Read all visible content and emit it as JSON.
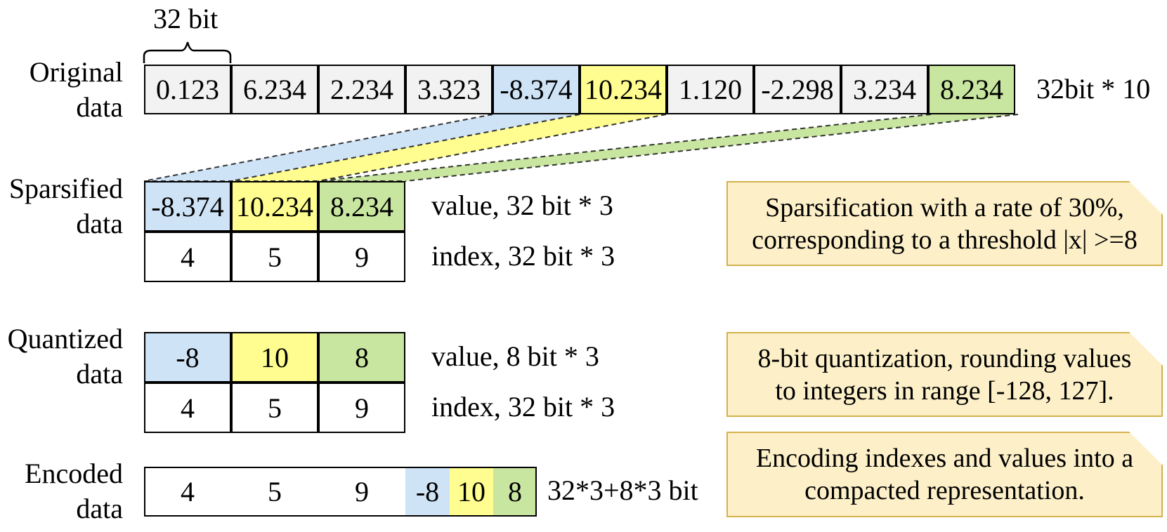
{
  "colors": {
    "blue": "#cfe3f7",
    "yellow": "#fffd8f",
    "green": "#c9e6a0",
    "gray": "#f2f2f2",
    "white": "#ffffff",
    "note_fill": "#fdf0c8",
    "note_border": "#d4b24c"
  },
  "original": {
    "label_line1": "Original",
    "label_line2": "data",
    "bit_label": "32 bit",
    "values": [
      "0.123",
      "6.234",
      "2.234",
      "3.323",
      "-8.374",
      "10.234",
      "1.120",
      "-2.298",
      "3.234",
      "8.234"
    ],
    "size_text": "32bit * 10"
  },
  "sparsified": {
    "label_line1": "Sparsified",
    "label_line2": "data",
    "values": [
      "-8.374",
      "10.234",
      "8.234"
    ],
    "indexes": [
      "4",
      "5",
      "9"
    ],
    "value_text": "value, 32 bit * 3",
    "index_text": "index, 32 bit * 3"
  },
  "quantized": {
    "label_line1": "Quantized",
    "label_line2": "data",
    "values": [
      "-8",
      "10",
      "8"
    ],
    "indexes": [
      "4",
      "5",
      "9"
    ],
    "value_text": "value, 8 bit * 3",
    "index_text": "index, 32 bit * 3"
  },
  "encoded": {
    "label_line1": "Encoded",
    "label_line2": "data",
    "cells": [
      "4",
      "5",
      "9",
      "-8",
      "10",
      "8"
    ],
    "size_text": "32*3+8*3 bit"
  },
  "notes": {
    "sparsification_line1": "Sparsification with a rate of 30%,",
    "sparsification_line2": "corresponding to a threshold |x| >=8",
    "quantization_line1": "8-bit quantization, rounding values",
    "quantization_line2": "to integers in range [-128, 127].",
    "encoding_line1": "Encoding indexes and values into a",
    "encoding_line2": "compacted representation."
  }
}
